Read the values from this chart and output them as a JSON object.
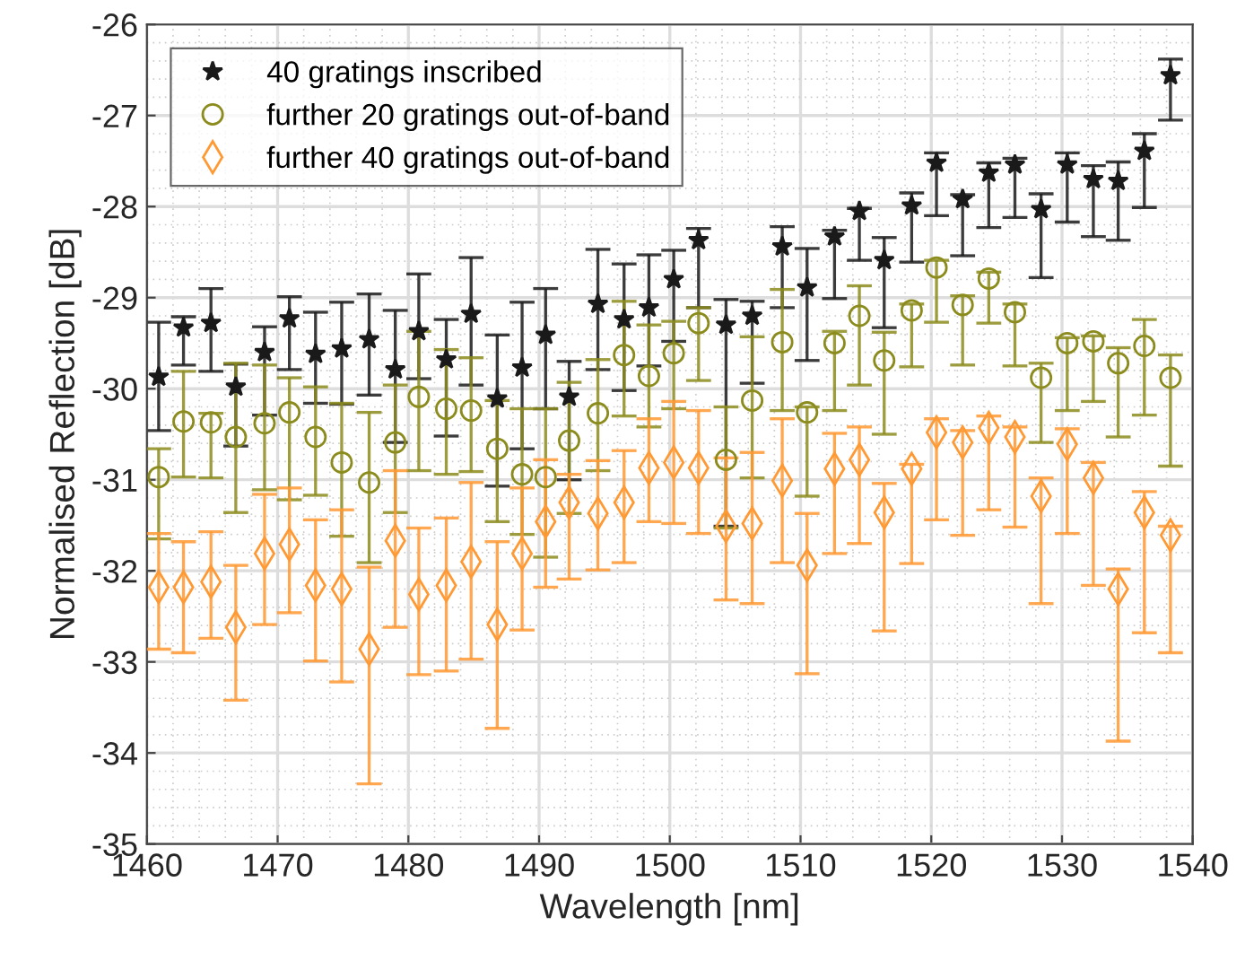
{
  "chart_data": {
    "type": "scatter",
    "xlabel": "Wavelength [nm]",
    "ylabel": "Normalised Reflection [dB]",
    "xlim": [
      1460,
      1540
    ],
    "xticks": [
      1460,
      1470,
      1480,
      1490,
      1500,
      1510,
      1520,
      1530,
      1540
    ],
    "ylim": [
      -35,
      -26
    ],
    "yticks": [
      -35,
      -34,
      -33,
      -32,
      -31,
      -30,
      -29,
      -28,
      -27,
      -26
    ],
    "grid": true,
    "legend": "top left",
    "x": [
      1460.9,
      1462.8,
      1464.9,
      1466.8,
      1469.0,
      1470.9,
      1472.9,
      1474.9,
      1477.0,
      1479.0,
      1480.8,
      1482.9,
      1484.8,
      1486.8,
      1488.7,
      1490.5,
      1492.3,
      1494.5,
      1496.5,
      1498.4,
      1500.3,
      1502.2,
      1504.3,
      1506.3,
      1508.6,
      1510.5,
      1512.6,
      1514.5,
      1516.4,
      1518.5,
      1520.4,
      1522.4,
      1524.4,
      1526.4,
      1528.4,
      1530.4,
      1532.4,
      1534.3,
      1536.3,
      1538.3
    ],
    "series": [
      {
        "name": "40 gratings inscribed",
        "color": "#1a1a1a",
        "marker": "star",
        "values": [
          -29.87,
          -29.33,
          -29.28,
          -29.98,
          -29.6,
          -29.23,
          -29.62,
          -29.56,
          -29.46,
          -29.79,
          -29.37,
          -29.68,
          -29.18,
          -30.11,
          -29.77,
          -29.41,
          -30.09,
          -29.07,
          -29.24,
          -29.11,
          -28.8,
          -28.37,
          -29.3,
          -29.2,
          -28.44,
          -28.89,
          -28.33,
          -28.05,
          -28.59,
          -27.99,
          -27.52,
          -27.92,
          -27.63,
          -27.54,
          -28.03,
          -27.54,
          -27.7,
          -27.72,
          -27.39,
          -26.56
        ],
        "errors": [
          [
            -30.46,
            -29.27
          ],
          [
            -29.74,
            -29.21
          ],
          [
            -29.81,
            -28.9
          ],
          [
            -30.63,
            -29.73
          ],
          [
            -30.29,
            -29.32
          ],
          [
            -29.79,
            -28.99
          ],
          [
            -30.16,
            -29.16
          ],
          [
            -30.17,
            -29.05
          ],
          [
            -30.07,
            -28.96
          ],
          [
            -30.59,
            -29.14
          ],
          [
            -29.89,
            -28.74
          ],
          [
            -30.52,
            -29.24
          ],
          [
            -29.96,
            -28.56
          ],
          [
            -31.07,
            -29.41
          ],
          [
            -30.66,
            -29.05
          ],
          [
            -30.22,
            -28.9
          ],
          [
            -31.0,
            -29.7
          ],
          [
            -29.79,
            -28.47
          ],
          [
            -30.02,
            -28.63
          ],
          [
            -29.75,
            -28.53
          ],
          [
            -29.48,
            -28.48
          ],
          [
            -29.11,
            -28.24
          ],
          [
            -31.51,
            -29.02
          ],
          [
            -29.94,
            -29.04
          ],
          [
            -29.11,
            -28.22
          ],
          [
            -29.69,
            -28.46
          ],
          [
            -29.01,
            -28.26
          ],
          [
            -28.59,
            -28.02
          ],
          [
            -29.33,
            -28.34
          ],
          [
            -28.61,
            -27.85
          ],
          [
            -28.1,
            -27.41
          ],
          [
            -28.54,
            -27.87
          ],
          [
            -28.23,
            -27.52
          ],
          [
            -28.12,
            -27.47
          ],
          [
            -28.78,
            -27.86
          ],
          [
            -28.17,
            -27.41
          ],
          [
            -28.33,
            -27.55
          ],
          [
            -28.37,
            -27.51
          ],
          [
            -28.01,
            -27.2
          ],
          [
            -27.05,
            -26.38
          ]
        ]
      },
      {
        "name": "further 20 gratings out-of-band",
        "color": "#8c8c1e",
        "marker": "circle",
        "values": [
          -30.97,
          -30.36,
          -30.37,
          -30.53,
          -30.38,
          -30.26,
          -30.53,
          -30.81,
          -31.03,
          -30.59,
          -30.09,
          -30.22,
          -30.24,
          -30.66,
          -30.94,
          -30.97,
          -30.57,
          -30.27,
          -29.63,
          -29.86,
          -29.61,
          -29.28,
          -30.78,
          -30.13,
          -29.49,
          -30.26,
          -29.5,
          -29.2,
          -29.69,
          -29.14,
          -28.67,
          -29.08,
          -28.79,
          -29.16,
          -29.88,
          -29.5,
          -29.48,
          -29.72,
          -29.53,
          -29.88
        ],
        "errors": [
          [
            -31.65,
            -30.66
          ],
          [
            -30.97,
            -29.81
          ],
          [
            -30.98,
            -30.27
          ],
          [
            -31.36,
            -29.72
          ],
          [
            -31.11,
            -29.74
          ],
          [
            -31.22,
            -29.88
          ],
          [
            -31.17,
            -29.98
          ],
          [
            -31.62,
            -30.16
          ],
          [
            -31.91,
            -30.26
          ],
          [
            -31.36,
            -29.96
          ],
          [
            -30.9,
            -29.37
          ],
          [
            -30.94,
            -29.57
          ],
          [
            -30.91,
            -29.66
          ],
          [
            -31.46,
            -30.13
          ],
          [
            -31.6,
            -30.22
          ],
          [
            -31.85,
            -30.22
          ],
          [
            -31.37,
            -29.93
          ],
          [
            -30.9,
            -29.68
          ],
          [
            -30.3,
            -29.04
          ],
          [
            -30.42,
            -29.3
          ],
          [
            -30.22,
            -29.26
          ],
          [
            -29.91,
            -29.11
          ],
          [
            -31.53,
            -30.2
          ],
          [
            -30.98,
            -29.43
          ],
          [
            -30.24,
            -28.91
          ],
          [
            -31.18,
            -30.2
          ],
          [
            -30.24,
            -29.37
          ],
          [
            -29.96,
            -28.87
          ],
          [
            -30.5,
            -29.38
          ],
          [
            -29.76,
            -29.07
          ],
          [
            -29.27,
            -28.59
          ],
          [
            -29.74,
            -28.98
          ],
          [
            -29.28,
            -28.72
          ],
          [
            -29.75,
            -29.07
          ],
          [
            -30.59,
            -29.72
          ],
          [
            -30.24,
            -29.44
          ],
          [
            -30.14,
            -29.42
          ],
          [
            -30.53,
            -29.55
          ],
          [
            -30.29,
            -29.24
          ],
          [
            -30.85,
            -29.63
          ]
        ]
      },
      {
        "name": "further 40 gratings out-of-band",
        "color": "#ff9933",
        "marker": "diamond",
        "values": [
          -32.18,
          -32.18,
          -32.12,
          -32.62,
          -31.81,
          -31.71,
          -32.16,
          -32.2,
          -32.86,
          -31.67,
          -32.26,
          -32.16,
          -31.9,
          -32.59,
          -31.81,
          -31.46,
          -31.25,
          -31.37,
          -31.25,
          -30.87,
          -30.81,
          -30.87,
          -31.51,
          -31.48,
          -31.01,
          -31.94,
          -30.88,
          -30.78,
          -31.36,
          -30.88,
          -30.48,
          -30.59,
          -30.43,
          -30.53,
          -31.18,
          -30.61,
          -30.98,
          -32.2,
          -31.36,
          -31.61
        ],
        "errors": [
          [
            -32.86,
            -31.59
          ],
          [
            -32.9,
            -31.68
          ],
          [
            -32.74,
            -31.57
          ],
          [
            -33.42,
            -31.94
          ],
          [
            -32.59,
            -31.16
          ],
          [
            -32.46,
            -31.09
          ],
          [
            -32.99,
            -31.44
          ],
          [
            -33.22,
            -31.33
          ],
          [
            -34.34,
            -31.96
          ],
          [
            -32.62,
            -30.9
          ],
          [
            -33.14,
            -31.53
          ],
          [
            -33.1,
            -31.42
          ],
          [
            -32.97,
            -31.03
          ],
          [
            -33.73,
            -31.68
          ],
          [
            -32.65,
            -31.09
          ],
          [
            -32.18,
            -30.78
          ],
          [
            -32.09,
            -30.94
          ],
          [
            -31.99,
            -30.79
          ],
          [
            -31.91,
            -30.68
          ],
          [
            -31.46,
            -30.33
          ],
          [
            -31.48,
            -30.14
          ],
          [
            -31.59,
            -30.24
          ],
          [
            -32.32,
            -30.76
          ],
          [
            -32.36,
            -30.7
          ],
          [
            -31.91,
            -30.33
          ],
          [
            -33.13,
            -31.37
          ],
          [
            -31.81,
            -30.49
          ],
          [
            -31.7,
            -30.42
          ],
          [
            -32.66,
            -31.04
          ],
          [
            -31.92,
            -30.83
          ],
          [
            -31.44,
            -30.33
          ],
          [
            -31.61,
            -30.46
          ],
          [
            -31.33,
            -30.3
          ],
          [
            -31.52,
            -30.42
          ],
          [
            -32.36,
            -30.98
          ],
          [
            -31.59,
            -30.44
          ],
          [
            -32.16,
            -30.81
          ],
          [
            -33.87,
            -31.98
          ],
          [
            -32.68,
            -31.13
          ],
          [
            -32.9,
            -31.51
          ]
        ]
      }
    ]
  }
}
